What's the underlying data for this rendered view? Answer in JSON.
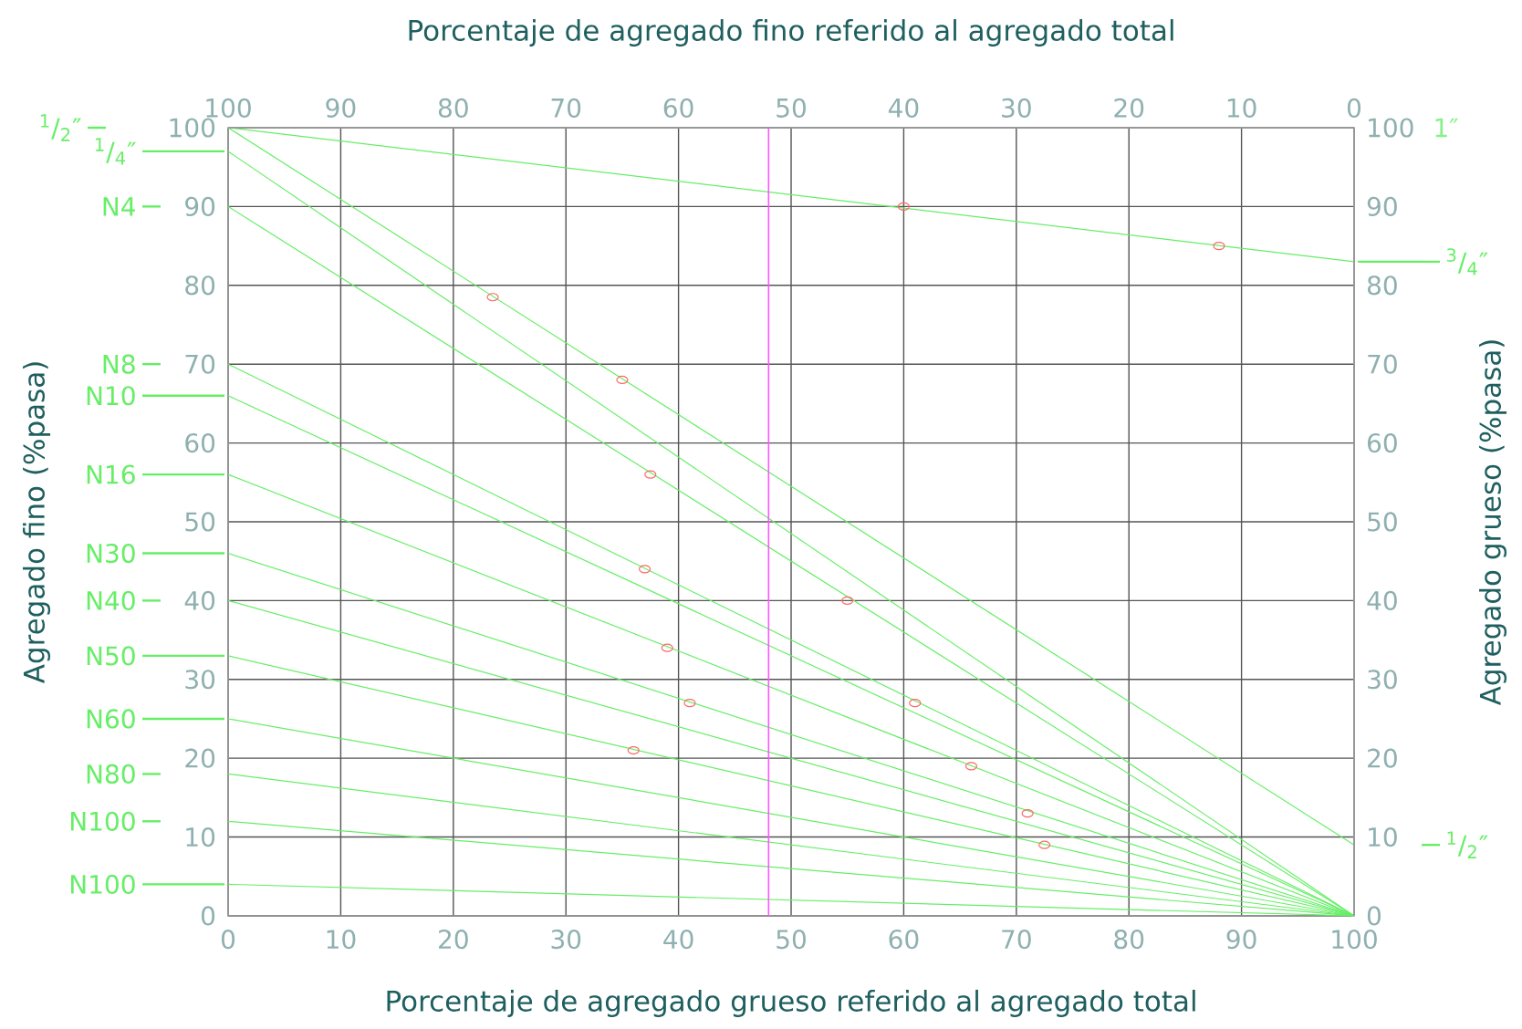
{
  "chart_data": {
    "type": "line",
    "xlabel": "Porcentaje de agregado grueso referido al agregado total",
    "x2label": "Porcentaje de agregado fino referido al agregado total",
    "ylabel": "Agregado fino (%pasa)",
    "y2label": "Agregado grueso (%pasa)",
    "xlim": [
      0,
      100
    ],
    "xticks": [
      0,
      10,
      20,
      30,
      40,
      50,
      60,
      70,
      80,
      90,
      100
    ],
    "x2lim": [
      100,
      0
    ],
    "x2ticks": [
      100,
      90,
      80,
      70,
      60,
      50,
      40,
      30,
      20,
      10,
      0
    ],
    "ylim": [
      0,
      100
    ],
    "yticks": [
      0,
      10,
      20,
      30,
      40,
      50,
      60,
      70,
      80,
      90,
      100
    ],
    "y2lim": [
      0,
      100
    ],
    "y2ticks": [
      0,
      10,
      20,
      30,
      40,
      50,
      60,
      70,
      80,
      90,
      100
    ],
    "grid": true,
    "marker": "none",
    "legend": "left",
    "series": [
      {
        "name": "$^{3}$/$_{4}$″",
        "color": "#66ee66",
        "x": [
          0,
          100
        ],
        "values": [
          100,
          83
        ]
      },
      {
        "name": "$^{1}$/$_{2}$″",
        "color": "#66ee66",
        "x": [
          0,
          100
        ],
        "values": [
          100,
          9
        ]
      },
      {
        "name": "$^{1}$/$_{4}$″",
        "color": "#66ee66",
        "x": [
          0,
          100
        ],
        "values": [
          97,
          0
        ]
      },
      {
        "name": "N4",
        "color": "#66ee66",
        "x": [
          0,
          100
        ],
        "values": [
          90,
          0
        ]
      },
      {
        "name": "N8",
        "color": "#66ee66",
        "x": [
          0,
          100
        ],
        "values": [
          70,
          0
        ]
      },
      {
        "name": "N10",
        "color": "#66ee66",
        "x": [
          0,
          100
        ],
        "values": [
          66,
          0
        ]
      },
      {
        "name": "N16",
        "color": "#66ee66",
        "x": [
          0,
          100
        ],
        "values": [
          56,
          0
        ]
      },
      {
        "name": "N30",
        "color": "#66ee66",
        "x": [
          0,
          100
        ],
        "values": [
          46,
          0
        ]
      },
      {
        "name": "N40",
        "color": "#66ee66",
        "x": [
          0,
          100
        ],
        "values": [
          40,
          0
        ]
      },
      {
        "name": "N50",
        "color": "#66ee66",
        "x": [
          0,
          100
        ],
        "values": [
          33,
          0
        ]
      },
      {
        "name": "N60",
        "color": "#66ee66",
        "x": [
          0,
          100
        ],
        "values": [
          25,
          0
        ]
      },
      {
        "name": "N80",
        "color": "#66ee66",
        "x": [
          0,
          100
        ],
        "values": [
          18,
          0
        ]
      },
      {
        "name": "N100",
        "color": "#66ee66",
        "x": [
          0,
          100
        ],
        "values": [
          12,
          0
        ]
      },
      {
        "name": "N100",
        "color": "#66ee66",
        "x": [
          0,
          100
        ],
        "values": [
          4,
          0
        ]
      },
      {
        "type": "scatter",
        "marker": "circle",
        "color": "#ff6666",
        "x": [
          60,
          88,
          23.5,
          35,
          37.5,
          37,
          55,
          39,
          41,
          61,
          36,
          66,
          71,
          72.5
        ],
        "values": [
          90,
          85,
          78.5,
          68,
          56,
          44,
          40,
          34,
          27,
          27,
          21,
          19,
          13,
          9
        ]
      }
    ],
    "ref_lines": [
      {
        "axis": "x",
        "value": 48,
        "color": "#ff55ff"
      }
    ],
    "annotations": [
      "1″"
    ]
  }
}
